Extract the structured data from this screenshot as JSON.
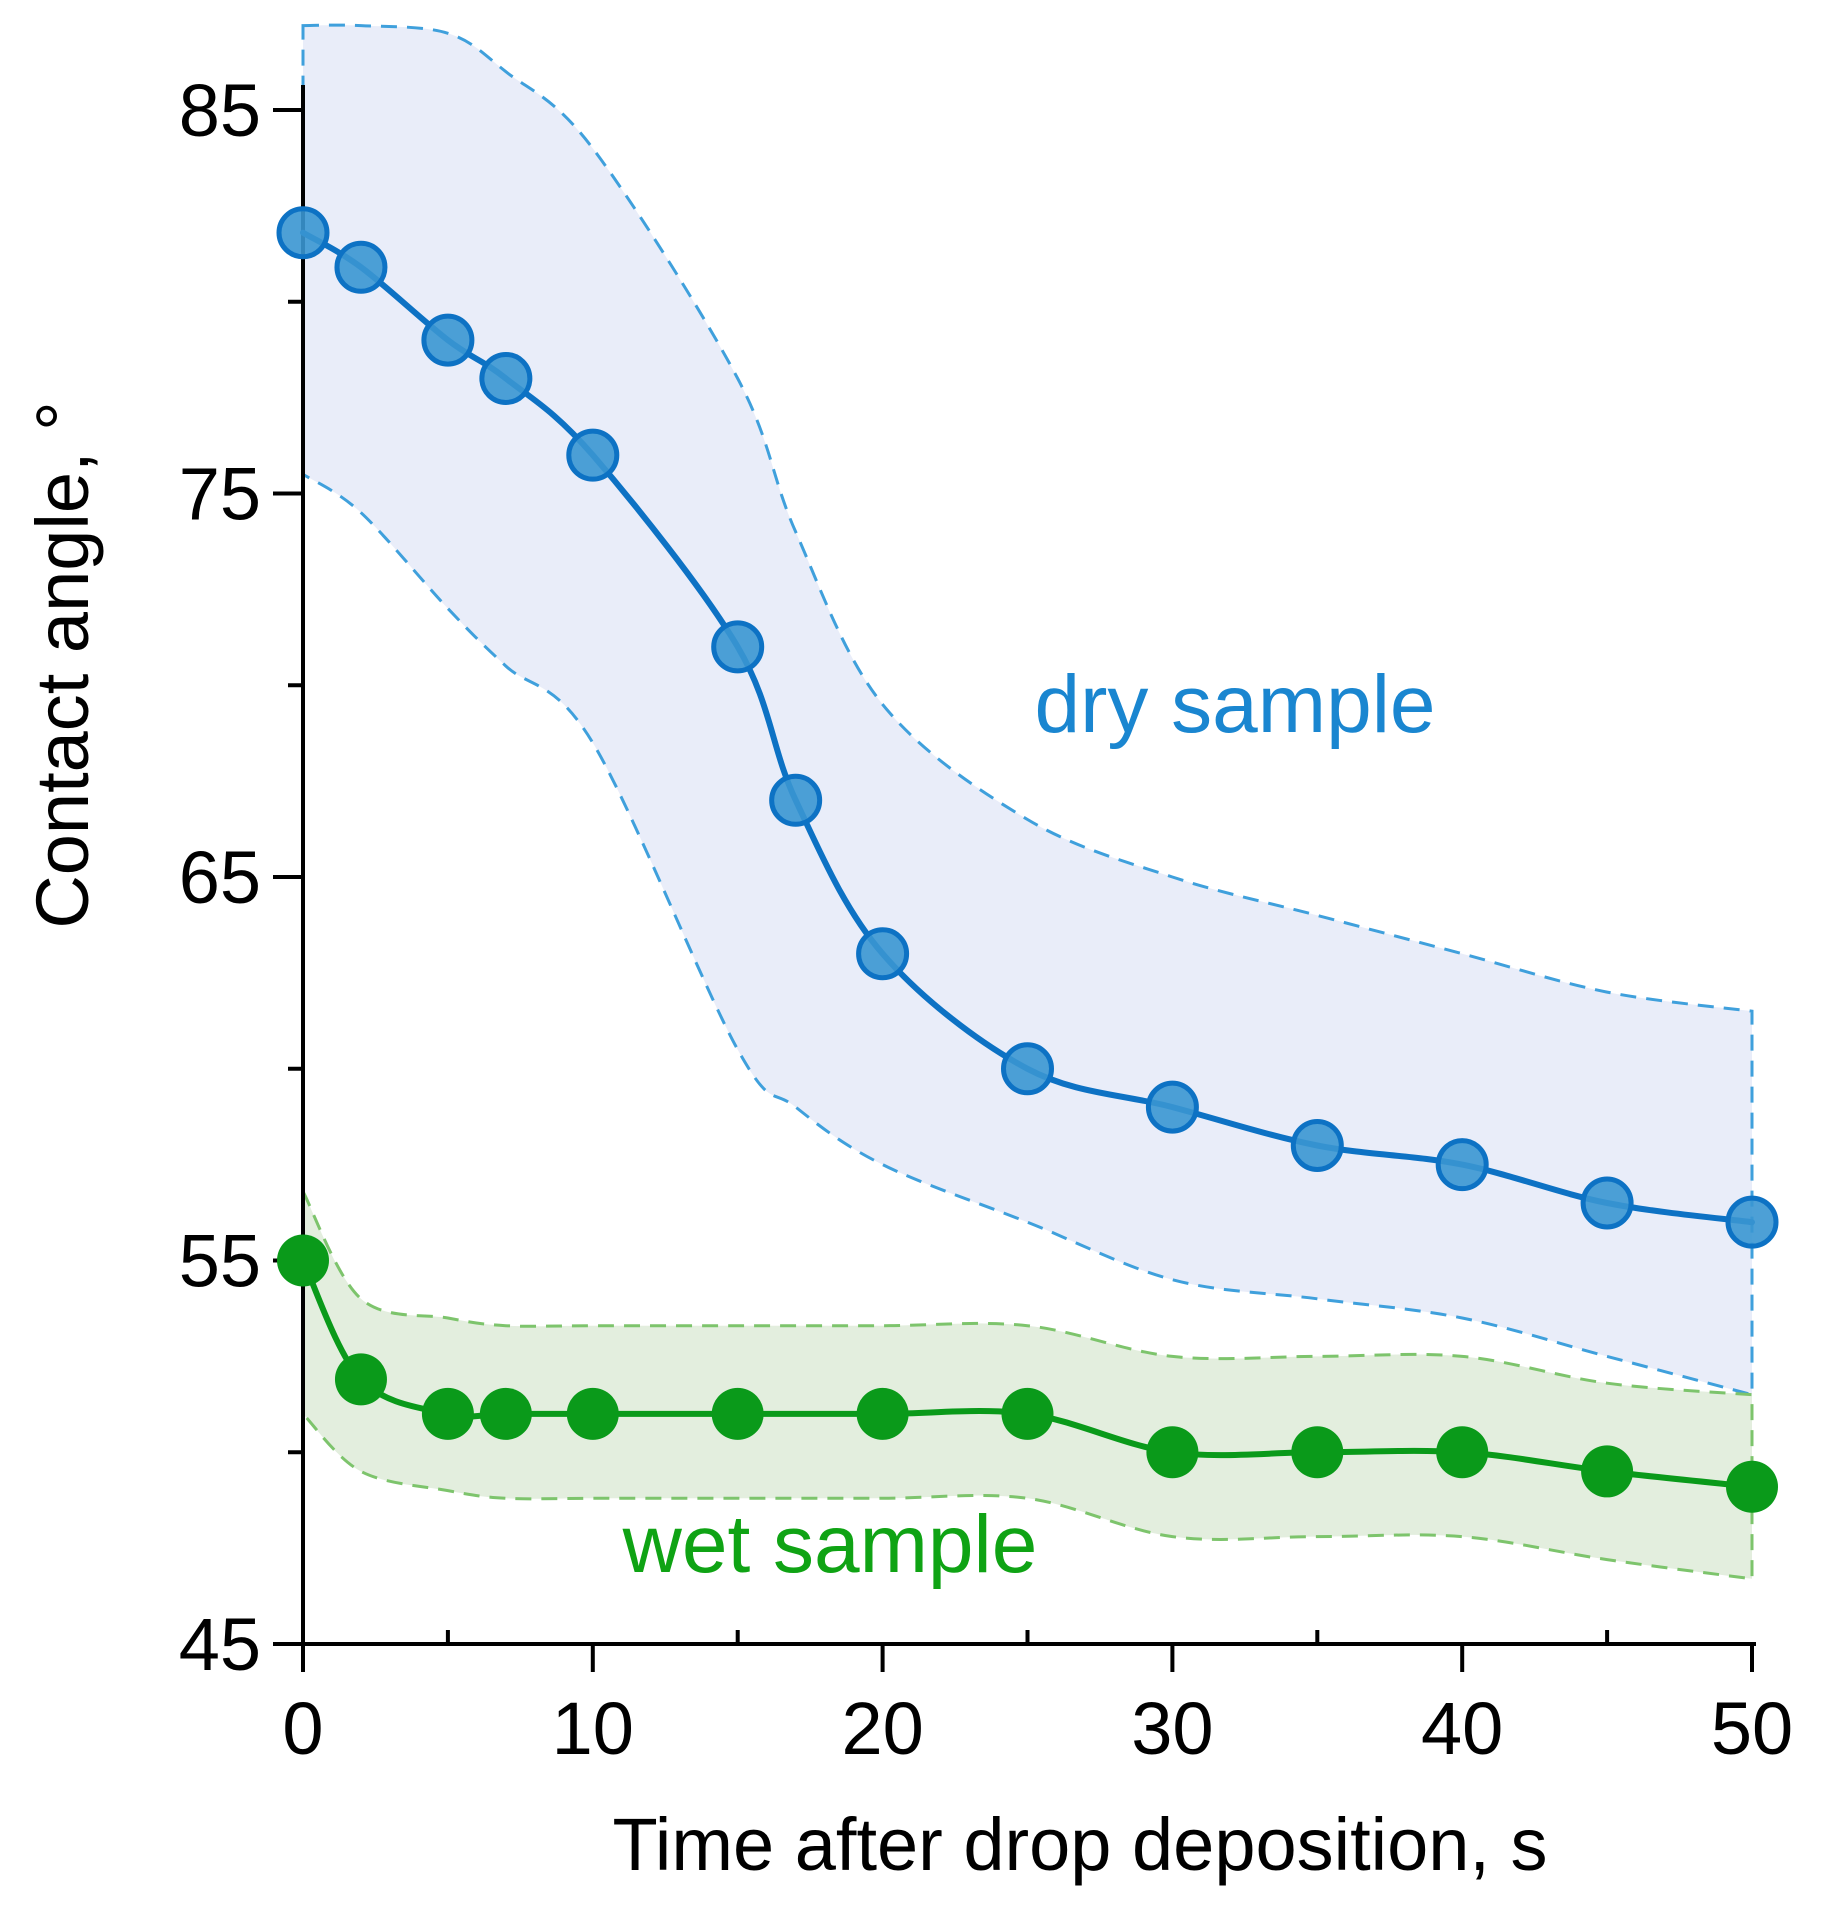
{
  "chart_data": {
    "type": "line",
    "title": "",
    "xlabel": "Time after drop deposition, s",
    "ylabel": "Contact angle, °",
    "xlim": [
      0,
      50
    ],
    "ylim": [
      45,
      85
    ],
    "x_ticks": [
      0,
      10,
      20,
      30,
      40,
      50
    ],
    "x_tick_labels": [
      "0",
      "10",
      "20",
      "30",
      "40",
      "50"
    ],
    "x_minor_ticks": [
      5,
      15,
      25,
      35,
      45
    ],
    "y_ticks": [
      45,
      55,
      65,
      75,
      85
    ],
    "y_tick_labels": [
      "45",
      "55",
      "65",
      "75",
      "85"
    ],
    "y_minor_ticks": [
      50,
      60,
      70,
      80
    ],
    "grid": false,
    "legend": "none",
    "series": [
      {
        "name": "dry sample",
        "label": "dry sample",
        "color": "#3a96d2",
        "line_color": "#0d72c4",
        "band_color": "#e9edf9",
        "band_edge_color": "#3fa0dc",
        "x": [
          0,
          2,
          5,
          7,
          10,
          15,
          17,
          20,
          25,
          30,
          35,
          40,
          45,
          50
        ],
        "values": [
          81.8,
          80.9,
          79.0,
          78.0,
          76.0,
          71.0,
          67.0,
          63.0,
          60.0,
          59.0,
          58.0,
          57.5,
          56.5,
          56.0
        ],
        "band_x": [
          0,
          2,
          5,
          7,
          10,
          15,
          17,
          20,
          25,
          30,
          35,
          40,
          45,
          50
        ],
        "band_upper": [
          87.2,
          87.2,
          87.0,
          86.0,
          84.0,
          78.0,
          74.0,
          69.5,
          66.5,
          65.0,
          64.0,
          63.0,
          62.0,
          61.5
        ],
        "band_lower": [
          75.5,
          74.5,
          72.0,
          70.5,
          68.5,
          60.5,
          59.0,
          57.5,
          56.0,
          54.5,
          54.0,
          53.5,
          52.5,
          51.5
        ]
      },
      {
        "name": "wet sample",
        "label": "wet sample",
        "color": "#0a9a1a",
        "line_color": "#0a9a1a",
        "band_color": "#e3eede",
        "band_edge_color": "#7dc46c",
        "x": [
          0,
          2,
          5,
          7,
          10,
          15,
          20,
          25,
          30,
          35,
          40,
          45,
          50
        ],
        "values": [
          55.0,
          51.9,
          51.0,
          51.0,
          51.0,
          51.0,
          51.0,
          51.0,
          50.0,
          50.0,
          50.0,
          49.5,
          49.1
        ],
        "band_x": [
          0,
          2,
          5,
          7,
          10,
          15,
          20,
          25,
          30,
          35,
          40,
          45,
          50
        ],
        "band_upper": [
          56.8,
          54.0,
          53.5,
          53.3,
          53.3,
          53.3,
          53.3,
          53.3,
          52.5,
          52.5,
          52.5,
          51.8,
          51.5
        ],
        "band_lower": [
          51.0,
          49.5,
          49.0,
          48.8,
          48.8,
          48.8,
          48.8,
          48.8,
          47.8,
          47.8,
          47.8,
          47.2,
          46.7
        ]
      }
    ]
  }
}
